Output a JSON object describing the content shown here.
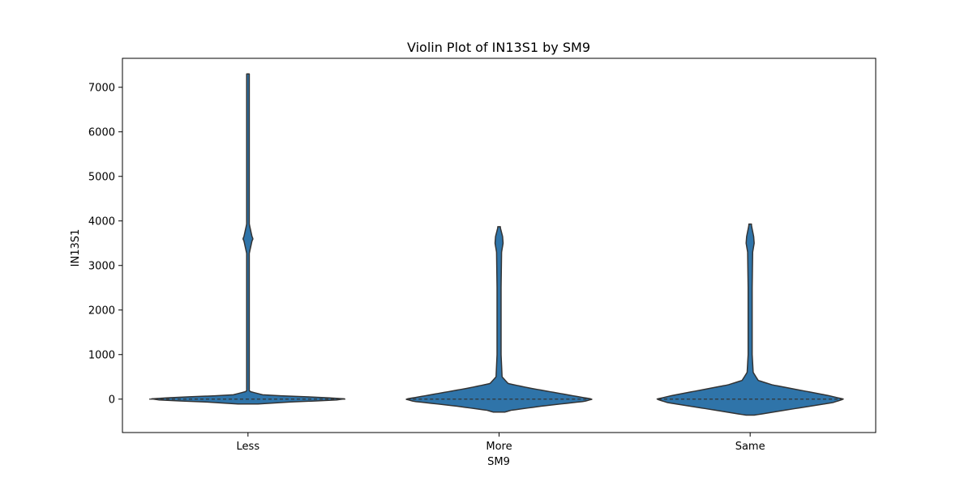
{
  "chart_data": {
    "type": "violin",
    "title": "Violin Plot of IN13S1 by SM9",
    "xlabel": "SM9",
    "ylabel": "IN13S1",
    "categories": [
      "Less",
      "More",
      "Same"
    ],
    "ylim": [
      -750,
      7650
    ],
    "yticks": [
      0,
      1000,
      2000,
      3000,
      4000,
      5000,
      6000,
      7000
    ],
    "ytick_labels": [
      "0",
      "1000",
      "2000",
      "3000",
      "4000",
      "5000",
      "6000",
      "7000"
    ],
    "color": "#2f74a9",
    "outline_color": "#333333",
    "violins": [
      {
        "category": "Less",
        "min": -110,
        "max": 7300,
        "median": 0,
        "profile": [
          [
            -110,
            0.1
          ],
          [
            -60,
            0.45
          ],
          [
            -30,
            0.8
          ],
          [
            0,
            1.0
          ],
          [
            40,
            0.72
          ],
          [
            90,
            0.16
          ],
          [
            180,
            0.004
          ],
          [
            1000,
            0.006
          ],
          [
            3200,
            0.006
          ],
          [
            3550,
            0.04
          ],
          [
            3600,
            0.05
          ],
          [
            3650,
            0.04
          ],
          [
            4000,
            0.006
          ],
          [
            7300,
            0.006
          ]
        ]
      },
      {
        "category": "More",
        "min": -290,
        "max": 3870,
        "median": 0,
        "profile": [
          [
            -290,
            0.06
          ],
          [
            -250,
            0.12
          ],
          [
            -150,
            0.45
          ],
          [
            -50,
            0.85
          ],
          [
            0,
            0.93
          ],
          [
            50,
            0.8
          ],
          [
            150,
            0.55
          ],
          [
            250,
            0.3
          ],
          [
            350,
            0.09
          ],
          [
            500,
            0.03
          ],
          [
            1000,
            0.02
          ],
          [
            2500,
            0.02
          ],
          [
            3300,
            0.025
          ],
          [
            3500,
            0.04
          ],
          [
            3650,
            0.035
          ],
          [
            3870,
            0.01
          ]
        ]
      },
      {
        "category": "Same",
        "min": -360,
        "max": 3930,
        "median": 0,
        "profile": [
          [
            -360,
            0.04
          ],
          [
            -320,
            0.15
          ],
          [
            -200,
            0.48
          ],
          [
            -80,
            0.82
          ],
          [
            0,
            0.93
          ],
          [
            80,
            0.78
          ],
          [
            200,
            0.5
          ],
          [
            320,
            0.22
          ],
          [
            420,
            0.08
          ],
          [
            600,
            0.03
          ],
          [
            1000,
            0.02
          ],
          [
            2500,
            0.02
          ],
          [
            3300,
            0.025
          ],
          [
            3500,
            0.04
          ],
          [
            3650,
            0.035
          ],
          [
            3930,
            0.01
          ]
        ]
      }
    ],
    "legend": "none",
    "grid": false
  }
}
